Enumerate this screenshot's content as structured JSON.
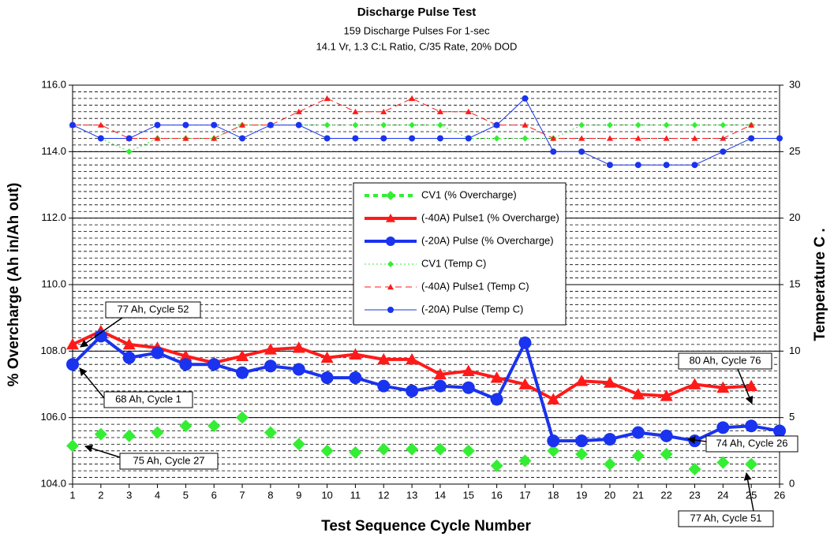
{
  "chart_data": {
    "type": "line",
    "title": "Discharge Pulse Test",
    "subtitle": [
      "159 Discharge Pulses For 1-sec",
      "14.1 Vr, 1.3 C:L Ratio, C/35 Rate, 20% DOD"
    ],
    "x_label": "Test Sequence Cycle Number",
    "y_label": "% Overcharge  (Ah in/Ah out)",
    "y2_label": "Temperature C .",
    "x": [
      1,
      2,
      3,
      4,
      5,
      6,
      7,
      8,
      9,
      10,
      11,
      12,
      13,
      14,
      15,
      16,
      17,
      18,
      19,
      20,
      21,
      22,
      23,
      24,
      25,
      26
    ],
    "xlim": [
      1,
      26
    ],
    "xticks": [
      1,
      2,
      3,
      4,
      5,
      6,
      7,
      8,
      9,
      10,
      11,
      12,
      13,
      14,
      15,
      16,
      17,
      18,
      19,
      20,
      21,
      22,
      23,
      24,
      25,
      26
    ],
    "ylim": [
      104,
      116
    ],
    "yticks": [
      {
        "value": 104,
        "label": "104.0"
      },
      {
        "value": 106,
        "label": "106.0"
      },
      {
        "value": 108,
        "label": "108.0"
      },
      {
        "value": 110,
        "label": "110.0"
      },
      {
        "value": 112,
        "label": "112.0"
      },
      {
        "value": 114,
        "label": "114.0"
      },
      {
        "value": 116,
        "label": "116.0"
      }
    ],
    "y2lim": [
      0,
      30
    ],
    "y2ticks": [
      0,
      5,
      10,
      15,
      20,
      25,
      30
    ],
    "grid": true,
    "minor_grid": 0.2,
    "series": [
      {
        "name": "CV1 (% Overcharge)",
        "color": "#33ee33",
        "line": "none",
        "marker": "diamond",
        "axis": "y",
        "values": [
          105.15,
          105.5,
          105.45,
          105.55,
          105.75,
          105.75,
          106.0,
          105.55,
          105.2,
          105.0,
          104.95,
          105.05,
          105.05,
          105.05,
          105.0,
          104.55,
          104.7,
          105.0,
          104.9,
          104.6,
          104.85,
          104.9,
          104.45,
          104.65,
          104.6,
          null
        ]
      },
      {
        "name": "(-40A) Pulse1 (% Overcharge)",
        "color": "#ff1a1a",
        "line": "solid",
        "width": 4,
        "marker": "triangle",
        "axis": "y",
        "values": [
          108.2,
          108.6,
          108.2,
          108.1,
          107.85,
          107.65,
          107.85,
          108.05,
          108.1,
          107.8,
          107.9,
          107.75,
          107.75,
          107.3,
          107.4,
          107.2,
          107.0,
          106.55,
          107.1,
          107.05,
          106.7,
          106.65,
          107.0,
          106.9,
          106.95,
          null
        ]
      },
      {
        "name": "(-20A) Pulse (% Overcharge)",
        "color": "#1a33ee",
        "line": "solid",
        "width": 4,
        "marker": "circle",
        "axis": "y",
        "values": [
          107.6,
          108.45,
          107.8,
          107.95,
          107.6,
          107.6,
          107.35,
          107.55,
          107.45,
          107.2,
          107.2,
          106.95,
          106.8,
          106.95,
          106.9,
          106.55,
          108.25,
          105.3,
          105.3,
          105.35,
          105.55,
          105.45,
          105.3,
          105.7,
          105.75,
          105.6
        ]
      },
      {
        "name": "CV1 (Temp C)",
        "color": "#33ee33",
        "line": "dotted",
        "width": 1,
        "marker": "diamond",
        "axis": "y2",
        "values": [
          27,
          26,
          25,
          26,
          26,
          26,
          27,
          27,
          27,
          27,
          27,
          27,
          27,
          27,
          26,
          26,
          26,
          26,
          27,
          27,
          27,
          27,
          27,
          27,
          27,
          null
        ]
      },
      {
        "name": "(-40A) Pulse1 (Temp C)",
        "color": "#ff1a1a",
        "line": "dashed",
        "width": 1,
        "marker": "triangle",
        "axis": "y2",
        "values": [
          27,
          27,
          26,
          26,
          26,
          26,
          27,
          27,
          28,
          29,
          28,
          28,
          29,
          28,
          28,
          27,
          27,
          26,
          26,
          26,
          26,
          26,
          26,
          26,
          27,
          null
        ]
      },
      {
        "name": "(-20A) Pulse (Temp C)",
        "color": "#1a33ee",
        "line": "solid",
        "width": 1,
        "marker": "circle",
        "axis": "y2",
        "values": [
          27,
          26,
          26,
          27,
          27,
          27,
          26,
          27,
          27,
          26,
          26,
          26,
          26,
          26,
          26,
          27,
          29,
          25,
          25,
          24,
          24,
          24,
          24,
          25,
          26,
          26
        ]
      }
    ],
    "annotations": [
      "77 Ah, Cycle 52",
      "68 Ah, Cycle 1",
      "75 Ah, Cycle 27",
      "80 Ah, Cycle 76",
      "74 Ah, Cycle 26",
      "77 Ah, Cycle 51"
    ]
  }
}
